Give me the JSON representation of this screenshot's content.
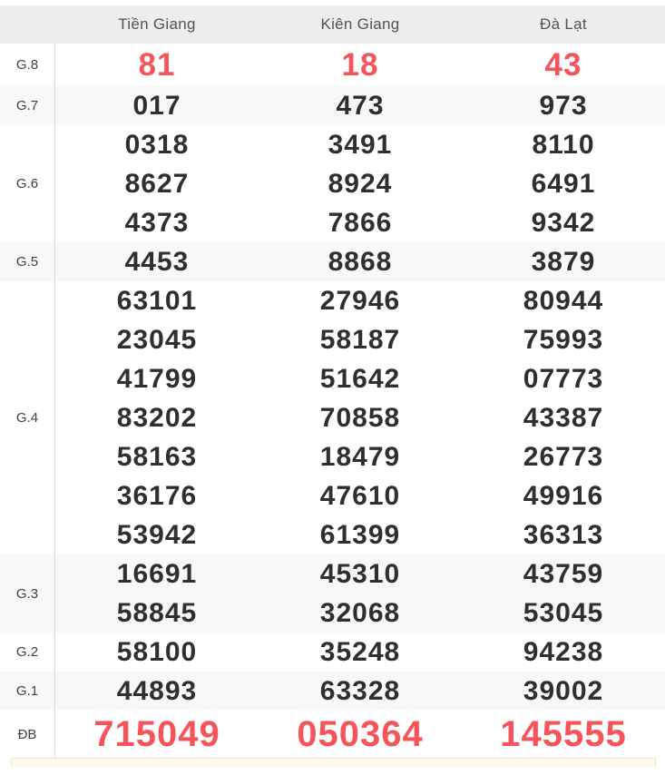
{
  "colors": {
    "red": "#f5555a",
    "dark_number": "#2f2f31",
    "header_bg": "#eeedee",
    "row_alt_bg": "#f8f8f8",
    "header_text": "#54505a",
    "label_text": "#3f3f41",
    "divider": "#dddddd",
    "note_bg": "#fdf8ee",
    "note_border": "#f3e4c6"
  },
  "header": {
    "columns": [
      "Tiền Giang",
      "Kiên Giang",
      "Đà Lạt"
    ]
  },
  "prizes": [
    {
      "label": "G.8",
      "highlight": true,
      "size": "large",
      "lines": [
        [
          "81",
          "18",
          "43"
        ]
      ]
    },
    {
      "label": "G.7",
      "highlight": false,
      "lines": [
        [
          "017",
          "473",
          "973"
        ]
      ]
    },
    {
      "label": "G.6",
      "highlight": false,
      "lines": [
        [
          "0318",
          "3491",
          "8110"
        ],
        [
          "8627",
          "8924",
          "6491"
        ],
        [
          "4373",
          "7866",
          "9342"
        ]
      ]
    },
    {
      "label": "G.5",
      "highlight": false,
      "lines": [
        [
          "4453",
          "8868",
          "3879"
        ]
      ]
    },
    {
      "label": "G.4",
      "highlight": false,
      "lines": [
        [
          "63101",
          "27946",
          "80944"
        ],
        [
          "23045",
          "58187",
          "75993"
        ],
        [
          "41799",
          "51642",
          "07773"
        ],
        [
          "83202",
          "70858",
          "43387"
        ],
        [
          "58163",
          "18479",
          "26773"
        ],
        [
          "36176",
          "47610",
          "49916"
        ],
        [
          "53942",
          "61399",
          "36313"
        ]
      ]
    },
    {
      "label": "G.3",
      "highlight": false,
      "lines": [
        [
          "16691",
          "45310",
          "43759"
        ],
        [
          "58845",
          "32068",
          "53045"
        ]
      ]
    },
    {
      "label": "G.2",
      "highlight": false,
      "lines": [
        [
          "58100",
          "35248",
          "94238"
        ]
      ]
    },
    {
      "label": "G.1",
      "highlight": false,
      "lines": [
        [
          "44893",
          "63328",
          "39002"
        ]
      ]
    },
    {
      "label": "ĐB",
      "highlight": true,
      "size": "xlarge",
      "lines": [
        [
          "715049",
          "050364",
          "145555"
        ]
      ]
    }
  ]
}
